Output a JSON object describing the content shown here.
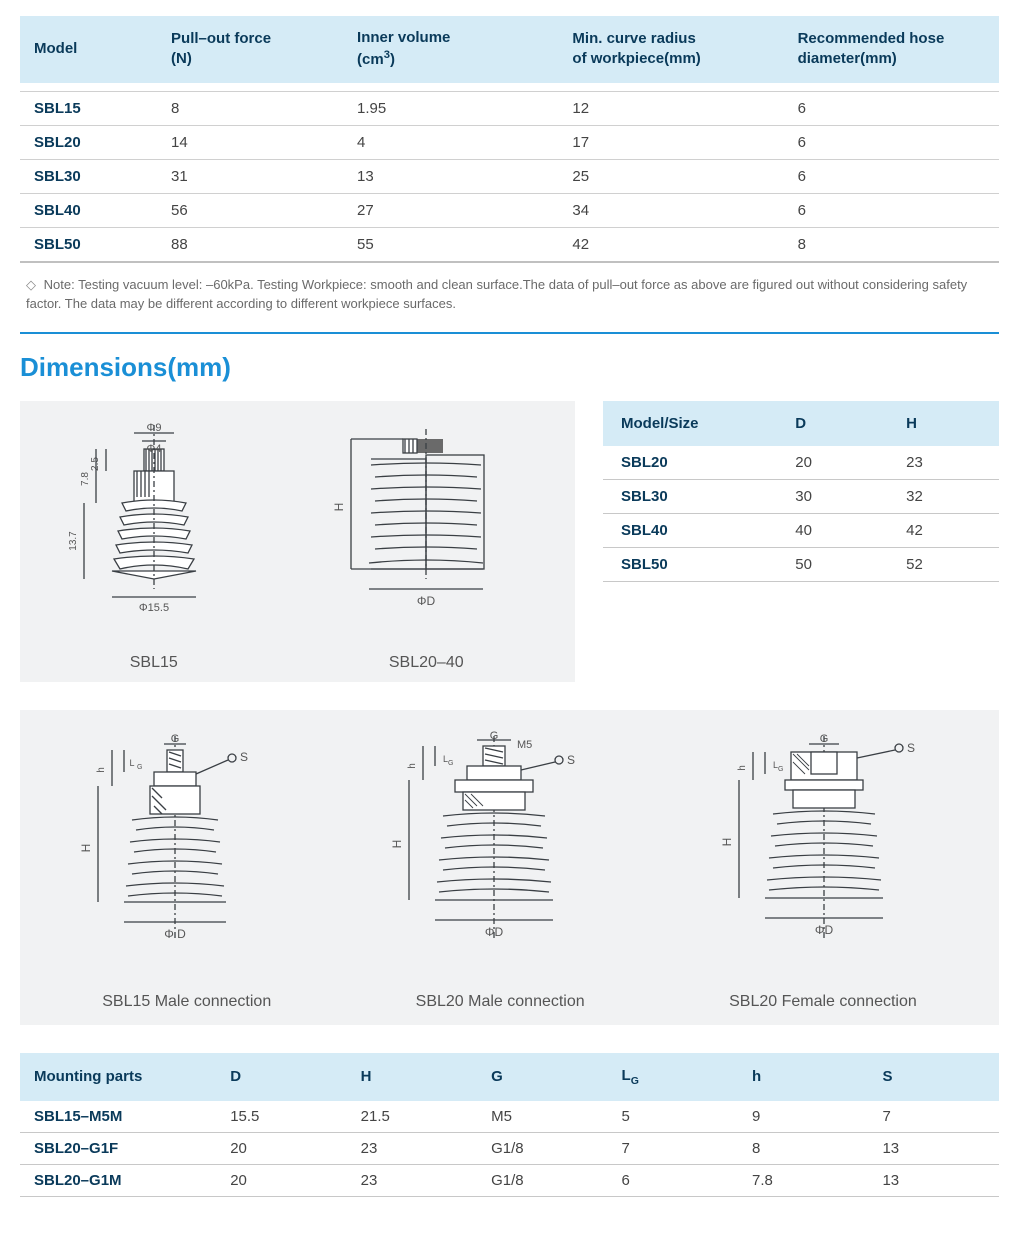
{
  "colors": {
    "header_bg": "#d5ebf6",
    "header_text": "#0a3a5a",
    "body_text": "#444444",
    "border": "#c8c8c8",
    "accent": "#1a8fd6",
    "panel_bg": "#f1f2f3",
    "note_text": "#6a6a6a",
    "diagram_stroke": "#3a3f44"
  },
  "spec_table": {
    "columns": [
      "Model",
      "Pull–out force\n(N)",
      "Inner volume\n(cm³)",
      "Min. curve radius\nof workpiece(mm)",
      "Recommended hose\ndiameter(mm)"
    ],
    "col_widths": [
      "14%",
      "19%",
      "22%",
      "23%",
      "22%"
    ],
    "rows": [
      [
        "SBL15",
        "8",
        "1.95",
        "12",
        "6"
      ],
      [
        "SBL20",
        "14",
        "4",
        "17",
        "6"
      ],
      [
        "SBL30",
        "31",
        "13",
        "25",
        "6"
      ],
      [
        "SBL40",
        "56",
        "27",
        "34",
        "6"
      ],
      [
        "SBL50",
        "88",
        "55",
        "42",
        "8"
      ]
    ]
  },
  "note": {
    "prefix": "◇",
    "label": "Note:",
    "text": "Testing vacuum level: –60kPa. Testing Workpiece: smooth and clean surface.The data of pull–out force as above are figured out without considering safety factor. The data may be different according to different workpiece surfaces."
  },
  "section_title": "Dimensions(mm)",
  "diagrams_top": {
    "sbl15": {
      "caption": "SBL15",
      "labels": {
        "d_top1": "Φ9",
        "d_top2": "Φ4",
        "h1": "2.5",
        "h2": "7.8",
        "h3": "13.7",
        "d_bottom": "Φ15.5"
      }
    },
    "sbl20_40": {
      "caption": "SBL20–40",
      "labels": {
        "h": "H",
        "d": "ΦD"
      }
    }
  },
  "size_table": {
    "columns": [
      "Model/Size",
      "D",
      "H"
    ],
    "col_widths": [
      "44%",
      "28%",
      "28%"
    ],
    "rows": [
      [
        "SBL20",
        "20",
        "23"
      ],
      [
        "SBL30",
        "30",
        "32"
      ],
      [
        "SBL40",
        "40",
        "42"
      ],
      [
        "SBL50",
        "50",
        "52"
      ]
    ]
  },
  "diagrams_mid": {
    "d1": {
      "caption": "SBL15 Male connection",
      "labels": {
        "g": "G",
        "s": "S",
        "lg": "LG",
        "h_small": "h",
        "h_big": "H",
        "d": "Φ D"
      }
    },
    "d2": {
      "caption": "SBL20 Male connection",
      "labels": {
        "g": "G",
        "m5": "M5",
        "s": "S",
        "lg": "LG",
        "h_small": "h",
        "h_big": "H",
        "d": "ΦD"
      }
    },
    "d3": {
      "caption": "SBL20 Female connection",
      "labels": {
        "g": "G",
        "s": "S",
        "lg": "LG",
        "h_small": "h",
        "h_big": "H",
        "d": "ΦD"
      }
    }
  },
  "mount_table": {
    "columns": [
      "Mounting parts",
      "D",
      "H",
      "G",
      "LG",
      "h",
      "S"
    ],
    "col_widths": [
      "20%",
      "13.3%",
      "13.3%",
      "13.3%",
      "13.3%",
      "13.3%",
      "13.3%"
    ],
    "rows": [
      [
        "SBL15–M5M",
        "15.5",
        "21.5",
        "M5",
        "5",
        "9",
        "7"
      ],
      [
        "SBL20–G1F",
        "20",
        "23",
        "G1/8",
        "7",
        "8",
        "13"
      ],
      [
        "SBL20–G1M",
        "20",
        "23",
        "G1/8",
        "6",
        "7.8",
        "13"
      ]
    ]
  }
}
